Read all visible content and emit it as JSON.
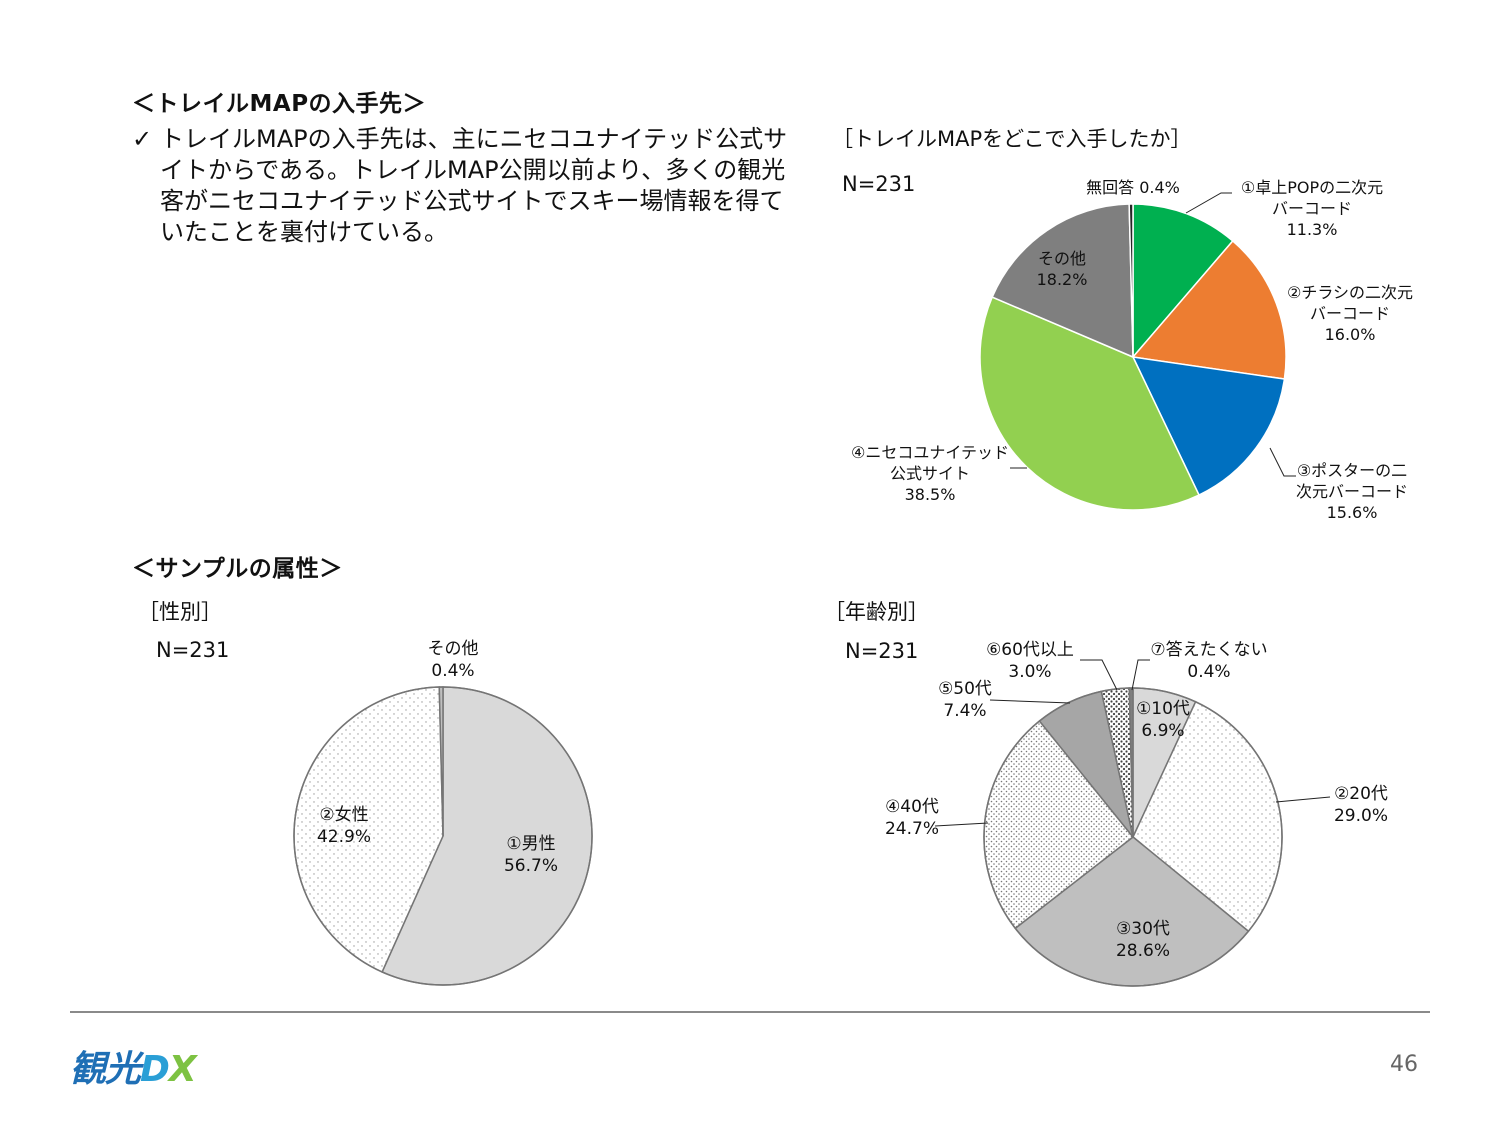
{
  "section1": {
    "heading": "＜トレイルMAPの入手先＞",
    "bullet_mark": "✓",
    "bullet_lines": [
      "トレイルMAPの入手先は、主にニセコユナイテッド公式サ",
      "イトからである。トレイルMAP公開以前より、多くの観光",
      "客がニセコユナイテッド公式サイトでスキー場情報を得て",
      "いたことを裏付けている。"
    ]
  },
  "section2": {
    "heading": "＜サンプルの属性＞"
  },
  "footer": {
    "logo_part1": "観光",
    "logo_part2": "D",
    "logo_part3": "X",
    "page_number": "46"
  },
  "chart_data": [
    {
      "type": "pie",
      "title": "［トレイルMAPをどこで入手したか］",
      "n_label": "N=231",
      "slices": [
        {
          "name": "①卓上POPの二次元バーコード",
          "label_lines": [
            "①卓上POPの二次元",
            "バーコード",
            "11.3%"
          ],
          "value": 11.3,
          "color": "#00b050",
          "pattern": "solid"
        },
        {
          "name": "②チラシの二次元バーコード",
          "label_lines": [
            "②チラシの二次元",
            "バーコード",
            "16.0%"
          ],
          "value": 16.0,
          "color": "#ed7d31",
          "pattern": "solid"
        },
        {
          "name": "③ポスターの二次元バーコード",
          "label_lines": [
            "③ポスターの二",
            "次元バーコード",
            "15.6%"
          ],
          "value": 15.6,
          "color": "#0070c0",
          "pattern": "solid"
        },
        {
          "name": "④ニセコユナイテッド公式サイト",
          "label_lines": [
            "④ニセコユナイテッド",
            "公式サイト",
            "38.5%"
          ],
          "value": 38.5,
          "color": "#92d050",
          "pattern": "solid"
        },
        {
          "name": "その他",
          "label_lines": [
            "その他",
            "18.2%"
          ],
          "value": 18.2,
          "color": "#7f7f7f",
          "pattern": "solid"
        },
        {
          "name": "無回答",
          "label_lines": [
            "無回答  0.4%"
          ],
          "value": 0.4,
          "color": "#262626",
          "pattern": "solid"
        }
      ]
    },
    {
      "type": "pie",
      "title": "［性別］",
      "n_label": "N=231",
      "slices": [
        {
          "name": "①男性",
          "label_lines": [
            "①男性",
            "56.7%"
          ],
          "value": 56.7,
          "color": "#d9d9d9",
          "pattern": "solid"
        },
        {
          "name": "②女性",
          "label_lines": [
            "②女性",
            "42.9%"
          ],
          "value": 42.9,
          "color": "#ffffff",
          "pattern": "dots-light"
        },
        {
          "name": "その他",
          "label_lines": [
            "その他",
            "0.4%"
          ],
          "value": 0.4,
          "color": "#bfbfbf",
          "pattern": "solid"
        }
      ]
    },
    {
      "type": "pie",
      "title": "［年齢別］",
      "n_label": "N=231",
      "slices": [
        {
          "name": "①10代",
          "label_lines": [
            "①10代",
            "6.9%"
          ],
          "value": 6.9,
          "color": "#d9d9d9",
          "pattern": "solid"
        },
        {
          "name": "②20代",
          "label_lines": [
            "②20代",
            "29.0%"
          ],
          "value": 29.0,
          "color": "#ffffff",
          "pattern": "dots-light"
        },
        {
          "name": "③30代",
          "label_lines": [
            "③30代",
            "28.6%"
          ],
          "value": 28.6,
          "color": "#bfbfbf",
          "pattern": "solid"
        },
        {
          "name": "④40代",
          "label_lines": [
            "④40代",
            "24.7%"
          ],
          "value": 24.7,
          "color": "#ffffff",
          "pattern": "dots-dense"
        },
        {
          "name": "⑤50代",
          "label_lines": [
            "⑤50代",
            "7.4%"
          ],
          "value": 7.4,
          "color": "#a6a6a6",
          "pattern": "solid"
        },
        {
          "name": "⑥60代以上",
          "label_lines": [
            "⑥60代以上",
            "3.0%"
          ],
          "value": 3.0,
          "color": "#ffffff",
          "pattern": "dots-bold"
        },
        {
          "name": "⑦答えたくない",
          "label_lines": [
            "⑦答えたくない",
            "0.4%"
          ],
          "value": 0.4,
          "color": "#7f7f7f",
          "pattern": "solid"
        }
      ]
    }
  ]
}
